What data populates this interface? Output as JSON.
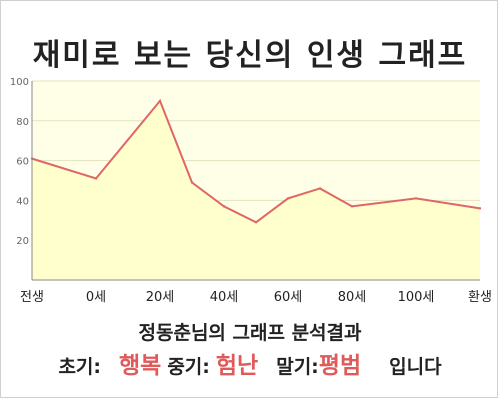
{
  "title": "재미로 보는 당신의 인생 그래프",
  "chart_data": {
    "type": "area",
    "categories": [
      "전생",
      "0세",
      "20세",
      "40세",
      "60세",
      "80세",
      "100세",
      "환생"
    ],
    "x": [
      -20,
      0,
      20,
      30,
      40,
      50,
      60,
      70,
      80,
      100,
      120
    ],
    "values": [
      61,
      51,
      90,
      49,
      37,
      29,
      41,
      46,
      37,
      41,
      36
    ],
    "yticks": [
      20,
      40,
      60,
      80,
      100
    ],
    "ylim": [
      0,
      100
    ],
    "xlim": [
      -20,
      120
    ],
    "grid": true,
    "colors": {
      "line": "#e06666",
      "fill": "#ffffcc",
      "plot_bg": "#ffffe8",
      "grid": "#e3e3c0"
    }
  },
  "analysis": {
    "heading": "정동춘님의 그래프 분석결과",
    "early_label": "초기:",
    "early_value": "행복",
    "mid_label": "중기:",
    "mid_value": "험난",
    "late_label": "말기:",
    "late_value": "평범",
    "ending": "입니다"
  }
}
